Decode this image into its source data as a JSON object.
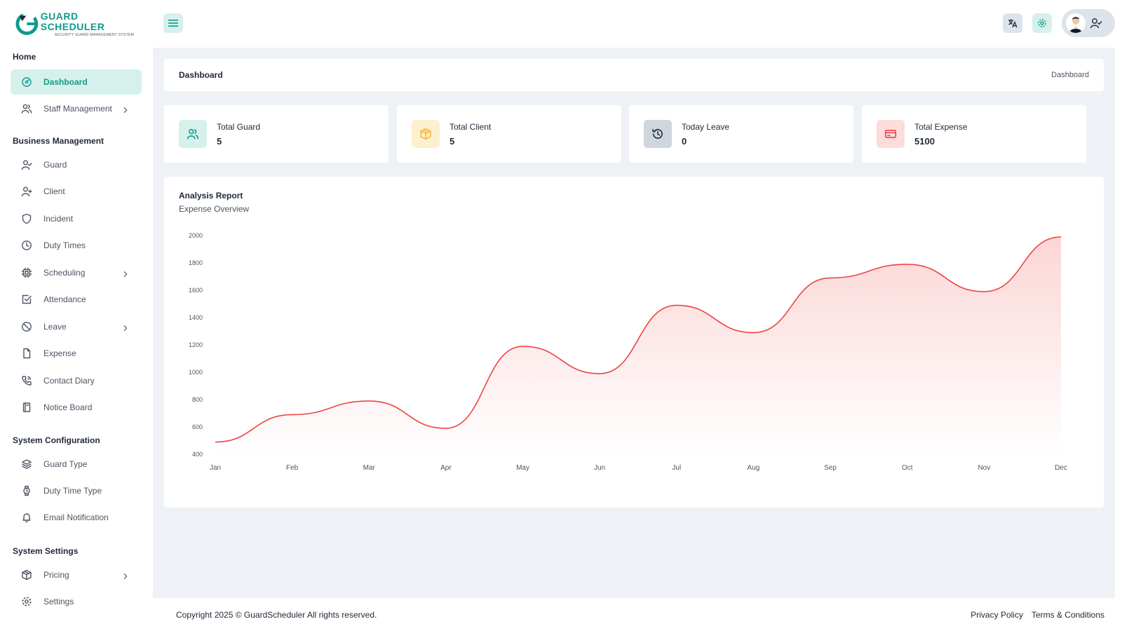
{
  "brand": {
    "name": "GUARD SCHEDULER",
    "tagline": "SECURITY GUARD MANAGEMENT SYSTEM",
    "accent": "#0f9b8a"
  },
  "header": {
    "menu_icon": "hamburger-icon",
    "translate_icon": "translate-icon",
    "settings_icon": "gear-icon",
    "profile_icon": "user-check-icon"
  },
  "sidebar": {
    "sections": [
      {
        "title": "Home",
        "items": [
          {
            "label": "Dashboard",
            "icon": "dashboard-icon",
            "active": true,
            "has_children": false
          },
          {
            "label": "Staff Management",
            "icon": "users-icon",
            "active": false,
            "has_children": true
          }
        ]
      },
      {
        "title": "Business Management",
        "items": [
          {
            "label": "Guard",
            "icon": "user-check-icon",
            "has_children": false
          },
          {
            "label": "Client",
            "icon": "user-plus-icon",
            "has_children": false
          },
          {
            "label": "Incident",
            "icon": "shield-icon",
            "has_children": false
          },
          {
            "label": "Duty Times",
            "icon": "clock-icon",
            "has_children": false
          },
          {
            "label": "Scheduling",
            "icon": "cpu-icon",
            "has_children": true
          },
          {
            "label": "Attendance",
            "icon": "checkbox-icon",
            "has_children": false
          },
          {
            "label": "Leave",
            "icon": "ban-icon",
            "has_children": true
          },
          {
            "label": "Expense",
            "icon": "file-icon",
            "has_children": false
          },
          {
            "label": "Contact Diary",
            "icon": "phone-icon",
            "has_children": false
          },
          {
            "label": "Notice Board",
            "icon": "notebook-icon",
            "has_children": false
          }
        ]
      },
      {
        "title": "System Configuration",
        "items": [
          {
            "label": "Guard Type",
            "icon": "layers-icon",
            "has_children": false
          },
          {
            "label": "Duty Time Type",
            "icon": "watch-icon",
            "has_children": false
          },
          {
            "label": "Email Notification",
            "icon": "bell-icon",
            "has_children": false
          }
        ]
      },
      {
        "title": "System Settings",
        "items": [
          {
            "label": "Pricing",
            "icon": "box-icon",
            "has_children": true
          },
          {
            "label": "Settings",
            "icon": "gear-icon",
            "has_children": false
          }
        ]
      }
    ]
  },
  "page": {
    "title": "Dashboard",
    "breadcrumb": "Dashboard"
  },
  "stats": [
    {
      "label": "Total Guard",
      "value": "5",
      "icon": "users-icon",
      "bg": "#d6f1ec",
      "fg": "#0f9b8a"
    },
    {
      "label": "Total Client",
      "value": "5",
      "icon": "box-icon",
      "bg": "#fdf0cf",
      "fg": "#f5b82e"
    },
    {
      "label": "Today Leave",
      "value": "0",
      "icon": "history-icon",
      "bg": "#cfd6de",
      "fg": "#1f2937"
    },
    {
      "label": "Total Expense",
      "value": "5100",
      "icon": "credit-card-icon",
      "bg": "#fddcdc",
      "fg": "#ef4444"
    }
  ],
  "report": {
    "title": "Analysis Report",
    "subtitle": "Expense Overview"
  },
  "chart_data": {
    "type": "area",
    "categories": [
      "Jan",
      "Feb",
      "Mar",
      "Apr",
      "May",
      "Jun",
      "Jul",
      "Aug",
      "Sep",
      "Oct",
      "Nov",
      "Dec"
    ],
    "values": [
      490,
      690,
      790,
      590,
      1190,
      990,
      1490,
      1290,
      1690,
      1790,
      1590,
      1990
    ],
    "yticks": [
      400,
      600,
      800,
      1000,
      1200,
      1400,
      1600,
      1800,
      2000
    ],
    "ylim": [
      400,
      2000
    ],
    "line_color": "#ef4444",
    "title": "",
    "xlabel": "",
    "ylabel": "",
    "grid": false
  },
  "footer": {
    "copyright": "Copyright 2025 © GuardScheduler All rights reserved.",
    "links": [
      "Privacy Policy",
      "Terms & Conditions"
    ]
  }
}
